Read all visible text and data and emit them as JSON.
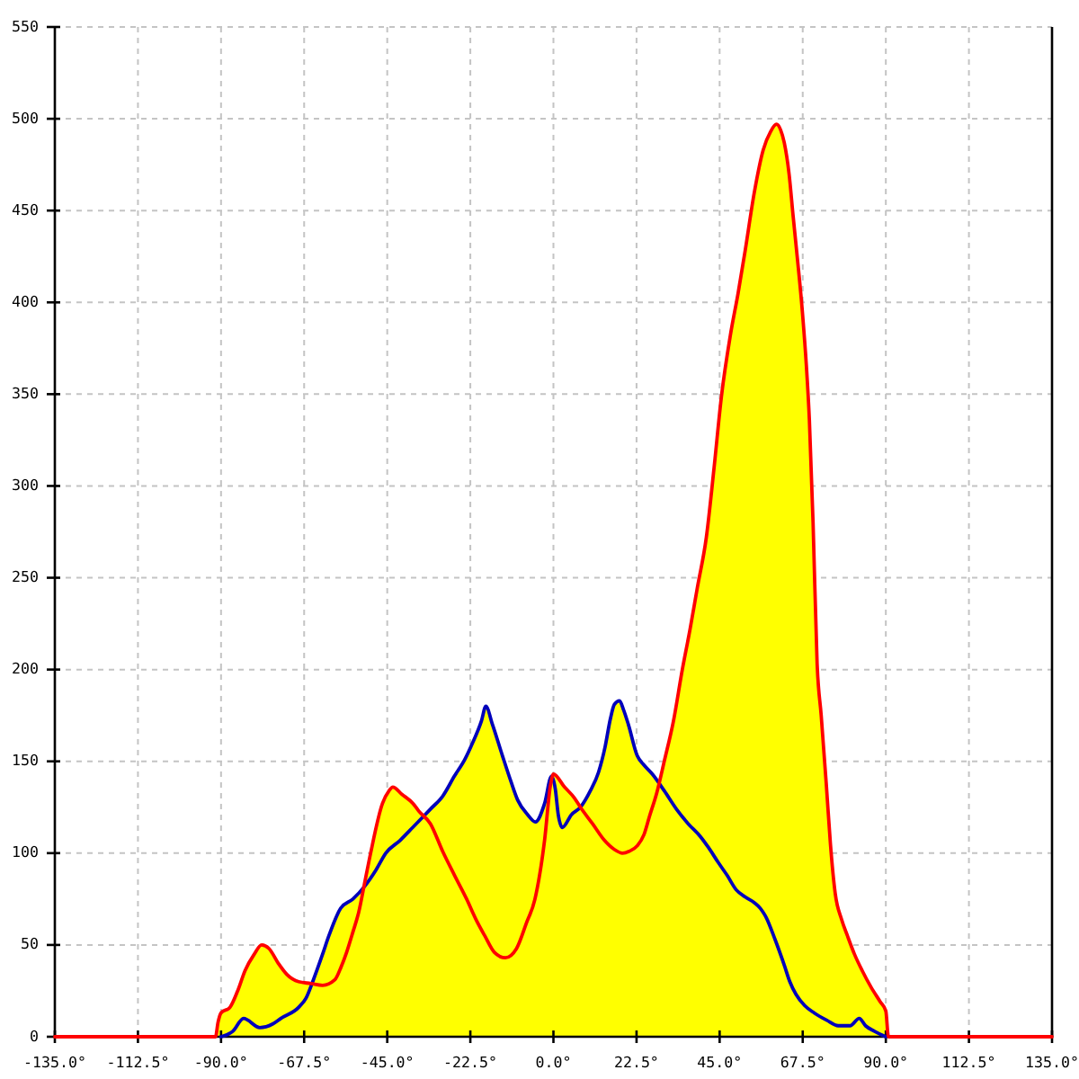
{
  "chart_data": {
    "type": "line",
    "xlim": [
      -135,
      135
    ],
    "ylim": [
      0,
      550
    ],
    "xticks": [
      {
        "value": -135,
        "label": "-135.0°"
      },
      {
        "value": -112.5,
        "label": "-112.5°"
      },
      {
        "value": -90,
        "label": "-90.0°"
      },
      {
        "value": -67.5,
        "label": "-67.5°"
      },
      {
        "value": -45,
        "label": "-45.0°"
      },
      {
        "value": -22.5,
        "label": "-22.5°"
      },
      {
        "value": 0,
        "label": "0.0°"
      },
      {
        "value": 22.5,
        "label": "22.5°"
      },
      {
        "value": 45,
        "label": "45.0°"
      },
      {
        "value": 67.5,
        "label": "67.5°"
      },
      {
        "value": 90,
        "label": "90.0°"
      },
      {
        "value": 112.5,
        "label": "112.5°"
      },
      {
        "value": 135,
        "label": "135.0°"
      }
    ],
    "yticks": [
      0,
      50,
      100,
      150,
      200,
      250,
      300,
      350,
      400,
      450,
      500,
      550
    ],
    "grid": true,
    "series": [
      {
        "type": "area",
        "color": "#ffff00",
        "x": [
          -91.5,
          -90.8,
          -90,
          -87.6,
          -85.5,
          -83.5,
          -81,
          -79,
          -77,
          -74.5,
          -72.2,
          -69,
          -66,
          -65,
          -62.5,
          -60.8,
          -57.6,
          -54.3,
          -51.3,
          -49.5,
          -46.3,
          -44.5,
          -43.5,
          -41,
          -38,
          -35.2,
          -33.3,
          -30,
          -26.8,
          -24,
          -21.9,
          -19.5,
          -18.3,
          -16.5,
          -13.8,
          -11.5,
          -9.7,
          -7,
          -4.9,
          -2.4,
          -0.5,
          0,
          3,
          5.7,
          7.3,
          10,
          12.2,
          14,
          15.4,
          16.5,
          17.9,
          19,
          20.3,
          22.7,
          24.5,
          26.8,
          28.8,
          30,
          32.5,
          34.9,
          37,
          39,
          41.4,
          43.5,
          45.5,
          47.9,
          50,
          51.9,
          54.4,
          56.8,
          58.8,
          60.4,
          61.5,
          62.5,
          63.8,
          64.9,
          66,
          67.4,
          68.5,
          69.3,
          70.3,
          71.4,
          72.5,
          73.9,
          75,
          76.3,
          78,
          79.6,
          81.5,
          83.6,
          86,
          88.5,
          90,
          90.7
        ],
        "values": [
          0,
          8,
          13,
          16,
          25,
          36,
          45,
          50,
          48,
          40,
          34,
          30,
          29,
          31,
          45,
          55,
          70,
          75,
          81,
          100,
          127,
          134,
          136,
          132,
          127,
          120,
          124,
          131,
          142,
          151,
          160,
          172,
          180,
          170,
          153,
          139,
          129,
          121,
          117,
          127,
          142,
          143,
          136,
          130,
          125,
          134,
          144,
          158,
          173,
          181,
          183,
          178,
          170,
          153,
          148,
          143,
          138,
          150,
          172,
          200,
          222,
          245,
          272,
          310,
          349,
          382,
          405,
          428,
          460,
          483,
          493,
          497,
          494,
          487,
          470,
          447,
          425,
          395,
          365,
          336,
          280,
          203,
          175,
          137,
          105,
          78,
          64,
          55,
          45,
          36,
          27,
          19,
          14,
          0
        ]
      },
      {
        "type": "line",
        "color": "#0000bb",
        "x": [
          -90,
          -86.8,
          -83.9,
          -79.5,
          -76,
          -73.8,
          -69,
          -67,
          -65,
          -62.5,
          -60.8,
          -57.6,
          -54.3,
          -51.1,
          -48,
          -45.4,
          -41.5,
          -38.1,
          -33.3,
          -30,
          -26.8,
          -24,
          -21.9,
          -19.5,
          -18.3,
          -16.5,
          -13.8,
          -11.5,
          -9.7,
          -7,
          -4.9,
          -2.4,
          -0.5,
          0.5,
          1.3,
          2.4,
          4.9,
          7.3,
          10,
          12.2,
          14,
          15.4,
          16.5,
          17.9,
          19,
          20.3,
          22.7,
          24.5,
          26.8,
          30,
          33.3,
          36.5,
          39.8,
          42,
          44.6,
          47,
          49.5,
          52,
          54.4,
          56,
          57.6,
          60,
          62.5,
          64,
          65.7,
          68,
          70.6,
          74,
          77.1,
          80.3,
          82.8,
          84.5,
          86.9,
          90
        ],
        "values": [
          0,
          3,
          10,
          5,
          7,
          10,
          16,
          21,
          31,
          45,
          55,
          70,
          75,
          82,
          91,
          100,
          107,
          114,
          124,
          131,
          142,
          151,
          160,
          172,
          180,
          170,
          153,
          139,
          129,
          121,
          117,
          127,
          142,
          135,
          121,
          114,
          121,
          125,
          134,
          144,
          158,
          173,
          181,
          183,
          178,
          170,
          153,
          148,
          143,
          134,
          124,
          116,
          109,
          103,
          95,
          88,
          80,
          76,
          73,
          70,
          65,
          53,
          39,
          30,
          23,
          17,
          13,
          9,
          6,
          6,
          10,
          6,
          3,
          0
        ]
      },
      {
        "type": "line",
        "color": "#ff0000",
        "x": [
          -135,
          -91.5,
          -90.8,
          -90,
          -87.6,
          -85.5,
          -83.5,
          -81,
          -79,
          -77,
          -74.5,
          -72.2,
          -69,
          -65.7,
          -62.5,
          -59.2,
          -57.5,
          -56,
          -54.3,
          -52.7,
          -51,
          -49.5,
          -46.3,
          -44.5,
          -43.5,
          -41,
          -38,
          -36.5,
          -33.3,
          -30,
          -26.8,
          -23.5,
          -21,
          -18.6,
          -16,
          -13,
          -10,
          -7.3,
          -5,
          -2.4,
          -0.8,
          0,
          3,
          5.7,
          7.3,
          10.6,
          13.8,
          16.5,
          18.7,
          20.5,
          22.7,
          24.5,
          26,
          28,
          30,
          32.5,
          34.9,
          37,
          39,
          41.4,
          43.5,
          45.5,
          47.9,
          50,
          51.9,
          54.4,
          56.8,
          58.8,
          60.4,
          61.5,
          62.5,
          63.8,
          64.9,
          66,
          67.4,
          68.5,
          69.3,
          70.3,
          71.4,
          72.5,
          73.9,
          75,
          76.3,
          78,
          79.6,
          81.5,
          83.6,
          86,
          88.5,
          90,
          90.7,
          135
        ],
        "values": [
          0,
          0,
          8,
          13,
          16,
          25,
          36,
          45,
          50,
          48,
          40,
          34,
          30,
          29,
          28,
          31,
          38,
          46,
          57,
          68,
          85,
          100,
          127,
          134,
          136,
          132,
          127,
          123,
          116,
          101,
          88,
          75,
          64,
          55,
          46,
          43,
          48,
          62,
          75,
          107,
          137,
          143,
          136,
          130,
          125,
          116,
          107,
          102,
          100,
          101,
          104,
          110,
          120,
          133,
          150,
          172,
          200,
          222,
          245,
          272,
          310,
          349,
          382,
          405,
          428,
          460,
          483,
          493,
          497,
          494,
          487,
          470,
          447,
          425,
          395,
          365,
          336,
          280,
          203,
          175,
          137,
          105,
          78,
          64,
          55,
          45,
          36,
          27,
          19,
          14,
          0,
          0
        ]
      }
    ]
  }
}
